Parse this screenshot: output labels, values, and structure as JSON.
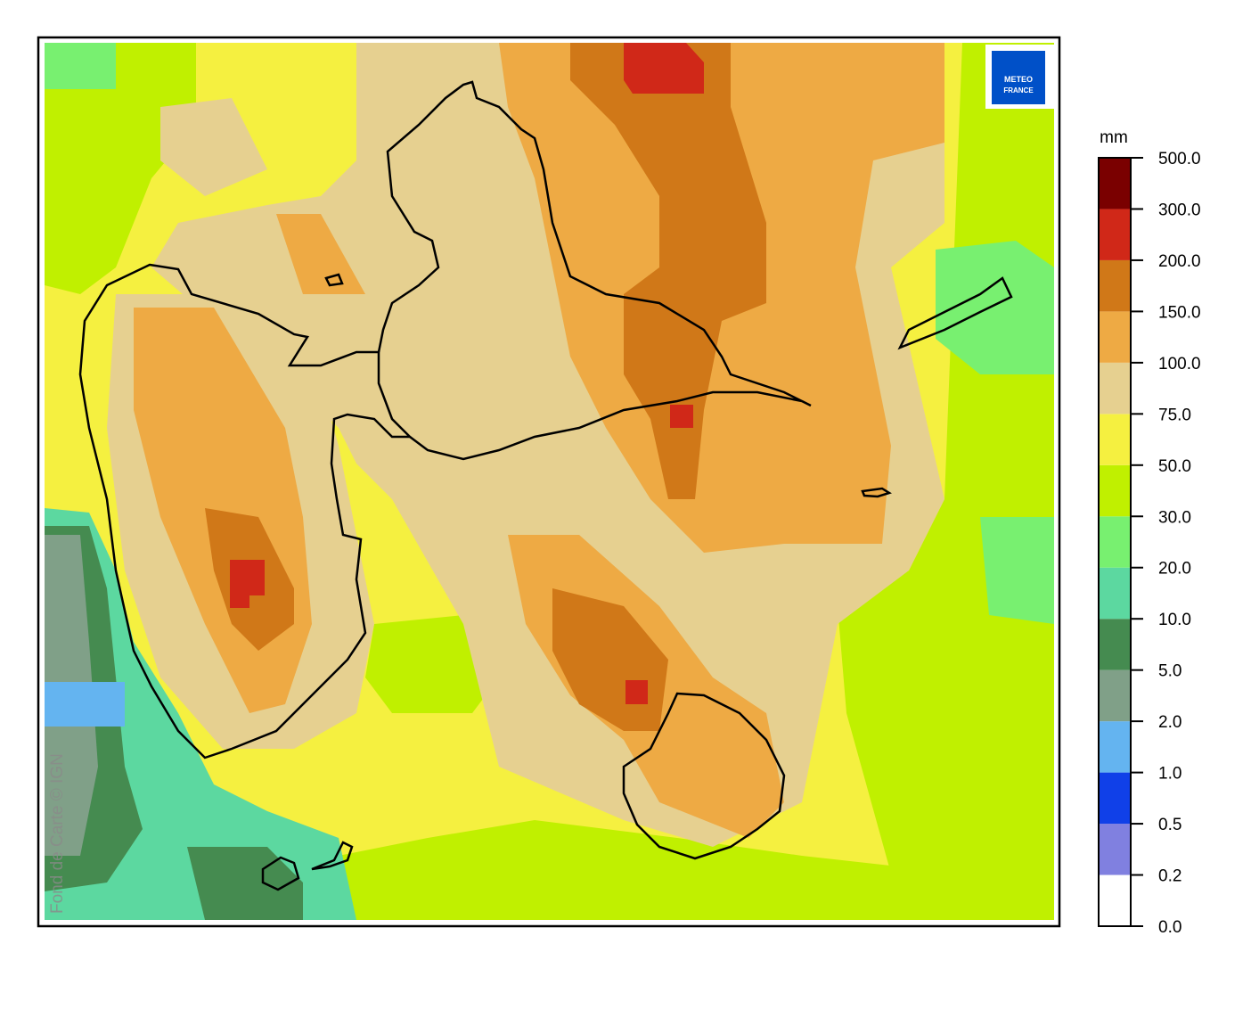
{
  "logo": {
    "line1": "METEO",
    "line2": "FRANCE"
  },
  "credit": "Fond de Carte © IGN",
  "legend": {
    "unit": "mm",
    "levels": [
      {
        "value": 0,
        "label": "0.0"
      },
      {
        "value": 0.2,
        "label": "0.2"
      },
      {
        "value": 0.5,
        "label": "0.5"
      },
      {
        "value": 1,
        "label": "1.0"
      },
      {
        "value": 2,
        "label": "2.0"
      },
      {
        "value": 5,
        "label": "5.0"
      },
      {
        "value": 10,
        "label": "10.0"
      },
      {
        "value": 20,
        "label": "20.0"
      },
      {
        "value": 30,
        "label": "30.0"
      },
      {
        "value": 50,
        "label": "50.0"
      },
      {
        "value": 75,
        "label": "75.0"
      },
      {
        "value": 100,
        "label": "100.0"
      },
      {
        "value": 150,
        "label": "150.0"
      },
      {
        "value": 200,
        "label": "200.0"
      },
      {
        "value": 300,
        "label": "300.0"
      },
      {
        "value": 500,
        "label": "500.0"
      }
    ],
    "colors": [
      "#ffffff",
      "#8080e0",
      "#1040e8",
      "#64b4f0",
      "#80a088",
      "#458b50",
      "#5cd8a0",
      "#78f070",
      "#c0f000",
      "#f5f040",
      "#e6d090",
      "#eeaa44",
      "#d07818",
      "#d02818",
      "#7a0000"
    ]
  }
}
